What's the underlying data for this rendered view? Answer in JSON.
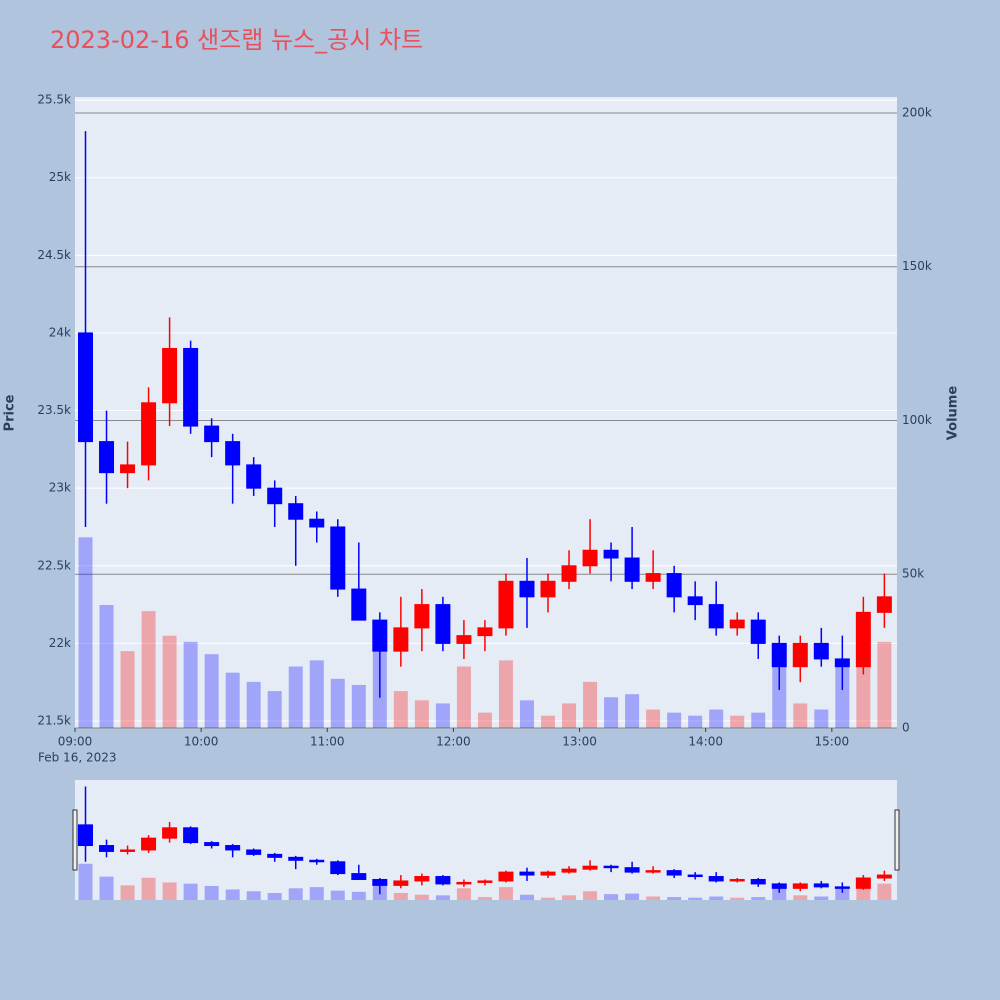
{
  "chart_data": {
    "type": "candlestick",
    "title": "2023-02-16 샌즈랩 뉴스_공시 차트",
    "y_title": "Price",
    "y2_title": "Volume",
    "x_date_label": "Feb 16, 2023",
    "up_color": "#ff0000",
    "down_color": "#0000ff",
    "x": [
      "2023-02-16 09:00",
      "2023-02-16 09:10",
      "2023-02-16 09:20",
      "2023-02-16 09:30",
      "2023-02-16 09:40",
      "2023-02-16 09:50",
      "2023-02-16 10:00",
      "2023-02-16 10:10",
      "2023-02-16 10:20",
      "2023-02-16 10:30",
      "2023-02-16 10:40",
      "2023-02-16 10:50",
      "2023-02-16 11:00",
      "2023-02-16 11:10",
      "2023-02-16 11:20",
      "2023-02-16 11:30",
      "2023-02-16 11:40",
      "2023-02-16 11:50",
      "2023-02-16 12:00",
      "2023-02-16 12:10",
      "2023-02-16 12:20",
      "2023-02-16 12:30",
      "2023-02-16 12:40",
      "2023-02-16 12:50",
      "2023-02-16 13:00",
      "2023-02-16 13:10",
      "2023-02-16 13:20",
      "2023-02-16 13:30",
      "2023-02-16 13:40",
      "2023-02-16 13:50",
      "2023-02-16 14:00",
      "2023-02-16 14:10",
      "2023-02-16 14:20",
      "2023-02-16 14:30",
      "2023-02-16 14:40",
      "2023-02-16 14:50",
      "2023-02-16 15:00",
      "2023-02-16 15:10",
      "2023-02-16 15:20"
    ],
    "open": [
      24000,
      23300,
      23100,
      23150,
      23550,
      23900,
      23400,
      23300,
      23150,
      23000,
      22900,
      22800,
      22750,
      22350,
      22150,
      21950,
      22100,
      22250,
      22000,
      22050,
      22100,
      22400,
      22300,
      22400,
      22500,
      22600,
      22550,
      22400,
      22450,
      22300,
      22250,
      22100,
      22150,
      22000,
      21850,
      22000,
      21900,
      21850,
      22200
    ],
    "high": [
      25300,
      23500,
      23300,
      23650,
      24100,
      23950,
      23450,
      23350,
      23200,
      23050,
      22950,
      22850,
      22800,
      22650,
      22200,
      22300,
      22350,
      22300,
      22150,
      22150,
      22450,
      22550,
      22450,
      22600,
      22800,
      22650,
      22750,
      22600,
      22500,
      22400,
      22400,
      22200,
      22200,
      22050,
      22050,
      22100,
      22050,
      22300,
      22450
    ],
    "low": [
      22750,
      22900,
      23000,
      23050,
      23400,
      23350,
      23200,
      22900,
      22950,
      22750,
      22500,
      22650,
      22300,
      22150,
      21650,
      21850,
      21950,
      21950,
      21900,
      21950,
      22050,
      22100,
      22200,
      22350,
      22450,
      22400,
      22350,
      22350,
      22200,
      22150,
      22050,
      22050,
      21900,
      21700,
      21750,
      21850,
      21700,
      21800,
      22100
    ],
    "close": [
      23300,
      23100,
      23150,
      23550,
      23900,
      23400,
      23300,
      23150,
      23000,
      22900,
      22800,
      22750,
      22350,
      22150,
      21950,
      22100,
      22250,
      22000,
      22050,
      22100,
      22400,
      22300,
      22400,
      22500,
      22600,
      22550,
      22400,
      22450,
      22300,
      22250,
      22100,
      22150,
      22000,
      21850,
      22000,
      21900,
      21850,
      22200,
      22300
    ],
    "volume": [
      62000,
      40000,
      25000,
      38000,
      30000,
      28000,
      24000,
      18000,
      15000,
      12000,
      20000,
      22000,
      16000,
      14000,
      30000,
      12000,
      9000,
      8000,
      20000,
      5000,
      22000,
      9000,
      4000,
      8000,
      15000,
      10000,
      11000,
      6000,
      5000,
      4000,
      6000,
      4000,
      5000,
      24000,
      8000,
      6000,
      22000,
      25000,
      28000
    ],
    "xlim": [
      "2023-02-16 09:00",
      "2023-02-16 15:31"
    ],
    "xticks": [
      {
        "value": "2023-02-16 09:00",
        "label": "09:00"
      },
      {
        "value": "2023-02-16 10:00",
        "label": "10:00"
      },
      {
        "value": "2023-02-16 11:00",
        "label": "11:00"
      },
      {
        "value": "2023-02-16 12:00",
        "label": "12:00"
      },
      {
        "value": "2023-02-16 13:00",
        "label": "13:00"
      },
      {
        "value": "2023-02-16 14:00",
        "label": "14:00"
      },
      {
        "value": "2023-02-16 15:00",
        "label": "15:00"
      }
    ],
    "ylim": [
      21455,
      25520
    ],
    "yticks": [
      {
        "value": 21500,
        "label": "21.5k"
      },
      {
        "value": 22000,
        "label": "22k"
      },
      {
        "value": 22500,
        "label": "22.5k"
      },
      {
        "value": 23000,
        "label": "23k"
      },
      {
        "value": 23500,
        "label": "23.5k"
      },
      {
        "value": 24000,
        "label": "24k"
      },
      {
        "value": 24500,
        "label": "24.5k"
      },
      {
        "value": 25000,
        "label": "25k"
      },
      {
        "value": 25500,
        "label": "25.5k"
      }
    ],
    "y2lim": [
      0,
      205200
    ],
    "y2ticks": [
      0,
      {
        "value": 50000,
        "label": "50k"
      },
      {
        "value": 100000,
        "label": "100k"
      },
      {
        "value": 150000,
        "label": "150k"
      },
      {
        "value": 200000,
        "label": "200k"
      }
    ],
    "grid": true
  }
}
